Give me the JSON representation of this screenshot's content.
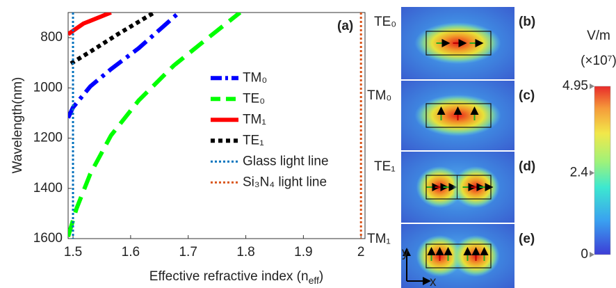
{
  "chart_data": [
    {
      "type": "line",
      "annotation": "(a)",
      "x_label": {
        "text": "Effective refractive index (n",
        "sub": "eff",
        "tail": ")"
      },
      "y_label": "Wavelength(nm)",
      "xlim": [
        1.4915,
        2.007
      ],
      "xticks": [
        1.5,
        1.6,
        1.7,
        1.8,
        1.9,
        2
      ],
      "ylim": [
        700,
        1600
      ],
      "yticks": [
        800,
        1000,
        1200,
        1400,
        1600
      ],
      "y_inverted": true,
      "grid": false,
      "legend": "center",
      "series": [
        {
          "name": "TM₀",
          "color": "#0000ff",
          "style": "dashdot",
          "x": [
            1.4915,
            1.5,
            1.53,
            1.566,
            1.614,
            1.684
          ],
          "values": [
            1119,
            1078,
            994,
            925,
            842,
            700
          ]
        },
        {
          "name": "TE₀",
          "color": "#00ff00",
          "style": "dashed",
          "x": [
            1.4915,
            1.506,
            1.53,
            1.566,
            1.614,
            1.675,
            1.735,
            1.79
          ],
          "values": [
            1592,
            1481,
            1342,
            1189,
            1050,
            911,
            800,
            700
          ]
        },
        {
          "name": "TM₁",
          "color": "#ff0000",
          "style": "solid",
          "x": [
            1.4915,
            1.518,
            1.566
          ],
          "values": [
            786,
            744,
            700
          ]
        },
        {
          "name": "TE₁",
          "color": "#000000",
          "style": "dotted",
          "x": [
            1.4963,
            1.53,
            1.578,
            1.641
          ],
          "values": [
            903,
            856,
            786,
            700
          ]
        },
        {
          "name": "Glass light line",
          "color": "#0072bd",
          "style": "fine-dotted",
          "x": [
            1.5,
            1.5
          ],
          "values": [
            700,
            1600
          ]
        },
        {
          "name": "Si₃N₄ light line",
          "color": "#d95319",
          "style": "fine-dotted",
          "x": [
            2,
            2
          ],
          "values": [
            700,
            1600
          ]
        }
      ]
    },
    {
      "type": "colorbar",
      "unit": "V/m",
      "scale_note": "(×10⁷)",
      "zlim": [
        0,
        4.95
      ],
      "zticks": [
        0,
        2.4,
        4.95
      ]
    }
  ],
  "mode_panels": [
    {
      "mode": "TE₀",
      "label": "(b)",
      "lobes": 1
    },
    {
      "mode": "TM₀",
      "label": "(c)",
      "lobes": 1
    },
    {
      "mode": "TE₁",
      "label": "(d)",
      "lobes": 2
    },
    {
      "mode": "TM₁",
      "label": "(e)",
      "lobes": 2
    }
  ],
  "axes_indicator": {
    "y": "y",
    "x": "x"
  }
}
